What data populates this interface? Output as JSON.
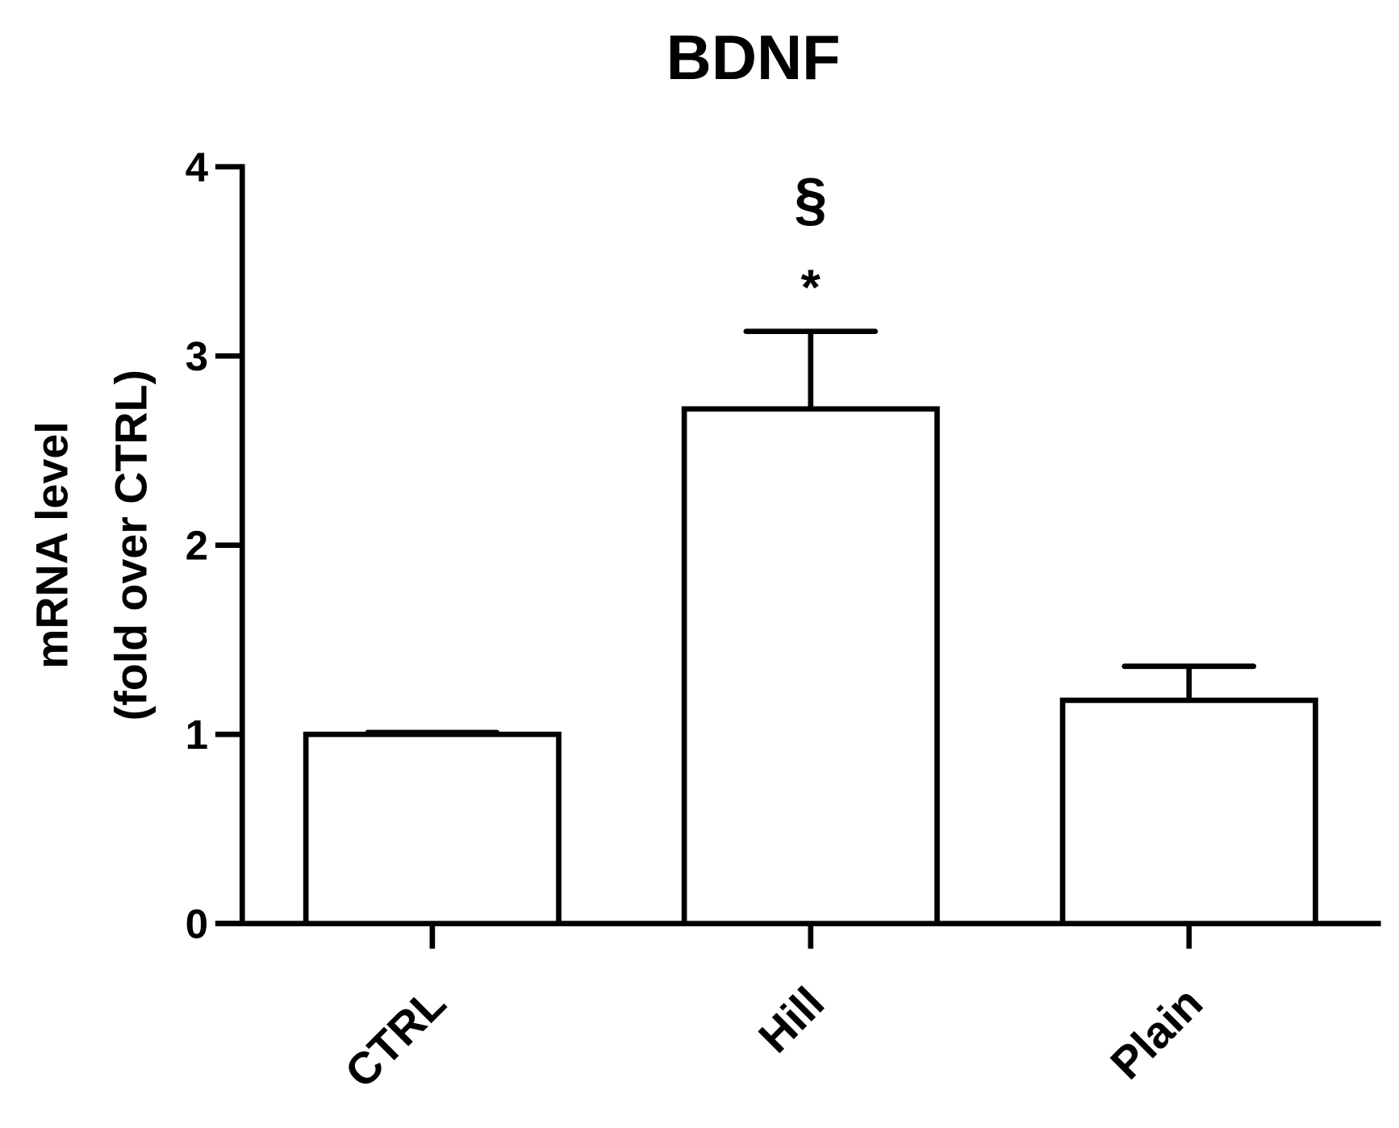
{
  "chart_data": {
    "type": "bar",
    "title": "BDNF",
    "y_label": [
      "mRNA level",
      "(fold over CTRL)"
    ],
    "categories": [
      "CTRL",
      "Hill",
      "Plain"
    ],
    "values": [
      1.0,
      2.72,
      1.18
    ],
    "errors": [
      0.01,
      0.41,
      0.18
    ],
    "annotations": [
      "§",
      "*"
    ],
    "color": "#ffffff",
    "ylim": [
      0,
      4
    ],
    "yticks": [
      0,
      1,
      2,
      3,
      4
    ],
    "grid": false
  }
}
